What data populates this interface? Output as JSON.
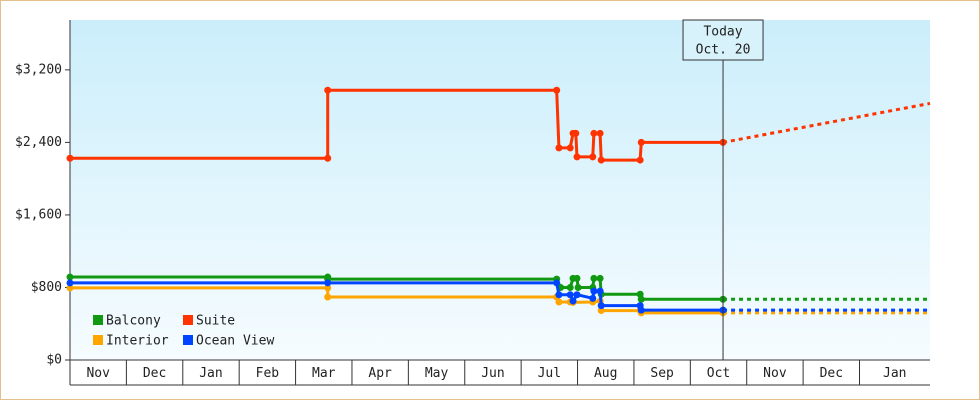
{
  "chart_data": {
    "type": "line",
    "xlim": [
      0,
      15.25
    ],
    "ylim": [
      0,
      3750
    ],
    "xticks": [
      {
        "value": 0,
        "label": "Nov"
      },
      {
        "value": 1,
        "label": "Dec"
      },
      {
        "value": 2,
        "label": "Jan"
      },
      {
        "value": 3,
        "label": "Feb"
      },
      {
        "value": 4,
        "label": "Mar"
      },
      {
        "value": 5,
        "label": "Apr"
      },
      {
        "value": 6,
        "label": "May"
      },
      {
        "value": 7,
        "label": "Jun"
      },
      {
        "value": 8,
        "label": "Jul"
      },
      {
        "value": 9,
        "label": "Aug"
      },
      {
        "value": 10,
        "label": "Sep"
      },
      {
        "value": 11,
        "label": "Oct"
      },
      {
        "value": 12,
        "label": "Nov"
      },
      {
        "value": 13,
        "label": "Dec"
      },
      {
        "value": 14,
        "label": "Jan"
      }
    ],
    "yticks": [
      {
        "value": 0,
        "label": "$0"
      },
      {
        "value": 800,
        "label": "$800"
      },
      {
        "value": 1600,
        "label": "$1,600"
      },
      {
        "value": 2400,
        "label": "$2,400"
      },
      {
        "value": 3200,
        "label": "$3,200"
      }
    ],
    "today": {
      "x": 11.58,
      "label": [
        "Today",
        "Oct. 20"
      ]
    },
    "forecast_x": [
      11.58,
      15.25
    ],
    "series": [
      {
        "name": "Balcony",
        "color": "#119911",
        "x": [
          0,
          4.57,
          4.57,
          8.63,
          8.7,
          8.87,
          8.92,
          8.99,
          9.01,
          9.27,
          9.29,
          9.4,
          9.42,
          10.11,
          10.13,
          11.58
        ],
        "values": [
          915,
          915,
          892,
          892,
          800,
          800,
          900,
          900,
          800,
          800,
          900,
          900,
          725,
          725,
          670,
          670
        ],
        "forecast": [
          670,
          670
        ]
      },
      {
        "name": "Suite",
        "color": "#ff3300",
        "x": [
          0,
          4.57,
          4.57,
          8.63,
          8.67,
          8.87,
          8.92,
          8.97,
          8.99,
          9.27,
          9.29,
          9.4,
          9.42,
          10.11,
          10.13,
          11.58
        ],
        "values": [
          2225,
          2225,
          2975,
          2975,
          2340,
          2340,
          2500,
          2500,
          2240,
          2240,
          2500,
          2500,
          2205,
          2205,
          2400,
          2400
        ],
        "forecast": [
          2400,
          2830
        ]
      },
      {
        "name": "Interior",
        "color": "#ffa500",
        "x": [
          0,
          4.57,
          4.57,
          8.63,
          8.67,
          8.87,
          8.92,
          9.27,
          9.4,
          9.42,
          10.11,
          10.13,
          11.58
        ],
        "values": [
          795,
          795,
          695,
          695,
          640,
          640,
          635,
          640,
          650,
          545,
          545,
          520,
          520
        ],
        "forecast": [
          520,
          520
        ]
      },
      {
        "name": "Ocean View",
        "color": "#0044ff",
        "x": [
          0,
          4.57,
          8.63,
          8.67,
          8.87,
          8.92,
          8.99,
          9.27,
          9.29,
          9.4,
          9.42,
          10.11,
          10.13,
          11.58
        ],
        "values": [
          850,
          850,
          850,
          720,
          720,
          650,
          720,
          680,
          760,
          760,
          600,
          600,
          550,
          550
        ],
        "forecast": [
          550,
          550
        ]
      }
    ]
  }
}
